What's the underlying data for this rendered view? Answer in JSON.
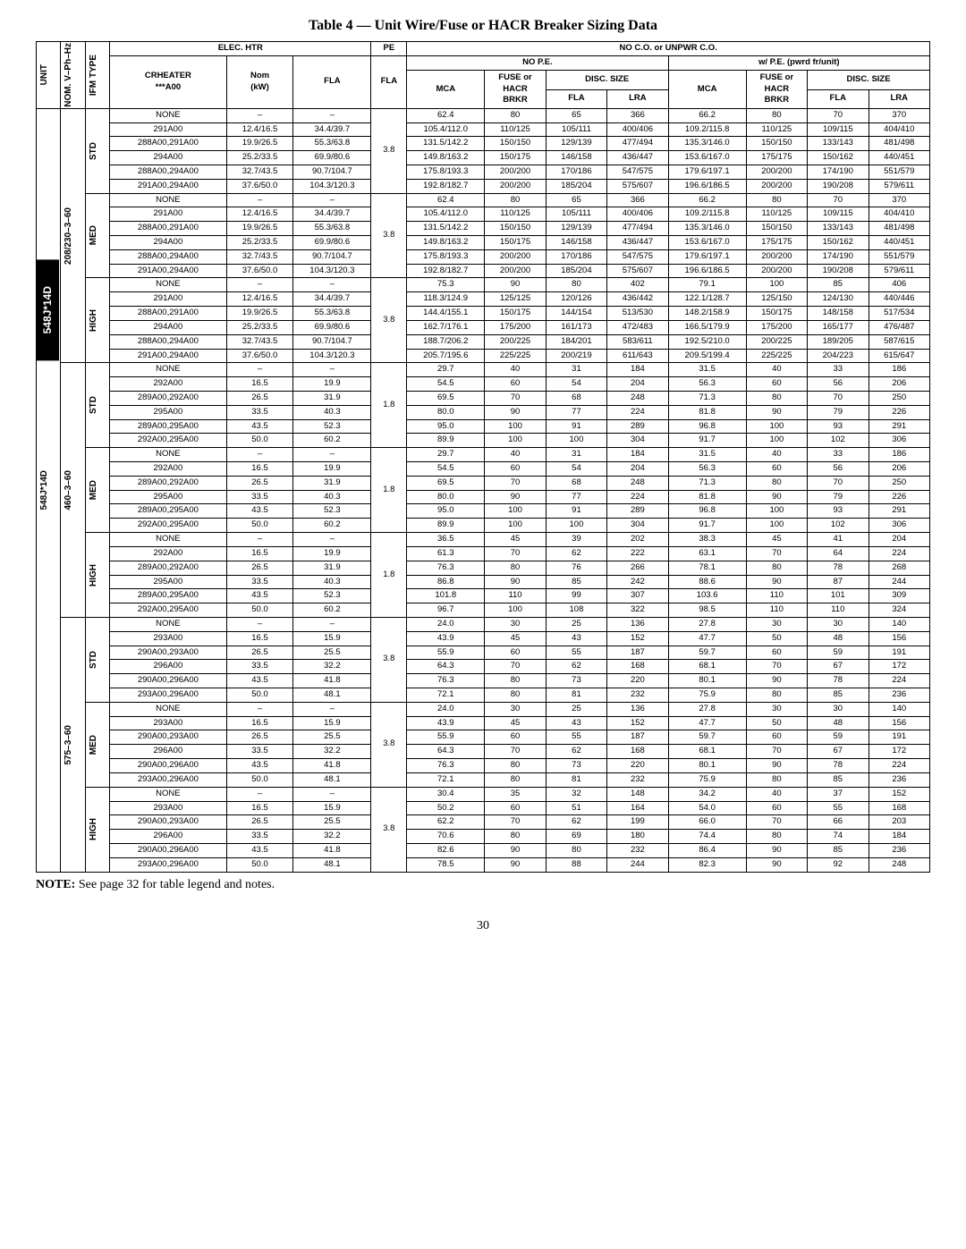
{
  "title": "Table 4 — Unit Wire/Fuse or HACR Breaker Sizing Data",
  "side_tab": "548J*14D",
  "note_label": "NOTE:",
  "note_text": "See page 32 for table legend and notes.",
  "page_number": "30",
  "headers": {
    "unit": "UNIT",
    "nom": "NOM. V–Ph–Hz",
    "ifm": "IFM TYPE",
    "elec_htr": "ELEC. HTR",
    "pe": "PE",
    "no_co": "NO C.O. or UNPWR C.O.",
    "crheater_l1": "CRHEATER",
    "crheater_l2": "***A00",
    "nom_kw_l1": "Nom",
    "nom_kw_l2": "(kW)",
    "fla": "FLA",
    "no_pe": "NO P.E.",
    "wpe": "w/ P.E. (pwrd fr/unit)",
    "mca": "MCA",
    "fuse_l1": "FUSE or",
    "fuse_l2": "HACR",
    "fuse_l3": "BRKR",
    "disc": "DISC. SIZE",
    "lra": "LRA"
  },
  "unit_label": "548J*14D",
  "voltages": [
    "208/230–3–60",
    "460–3–60",
    "575–3–60"
  ],
  "ifm_types": [
    "STD",
    "MED",
    "HIGH"
  ],
  "blocks": [
    {
      "pe_fla": "3.8",
      "rows": [
        {
          "crh": "NONE",
          "kw": "–",
          "fla": "–",
          "v": [
            "62.4",
            "80",
            "65",
            "366",
            "66.2",
            "80",
            "70",
            "370"
          ]
        },
        {
          "crh": "291A00",
          "kw": "12.4/16.5",
          "fla": "34.4/39.7",
          "v": [
            "105.4/112.0",
            "110/125",
            "105/111",
            "400/406",
            "109.2/115.8",
            "110/125",
            "109/115",
            "404/410"
          ]
        },
        {
          "crh": "288A00,291A00",
          "kw": "19.9/26.5",
          "fla": "55.3/63.8",
          "v": [
            "131.5/142.2",
            "150/150",
            "129/139",
            "477/494",
            "135.3/146.0",
            "150/150",
            "133/143",
            "481/498"
          ]
        },
        {
          "crh": "294A00",
          "kw": "25.2/33.5",
          "fla": "69.9/80.6",
          "v": [
            "149.8/163.2",
            "150/175",
            "146/158",
            "436/447",
            "153.6/167.0",
            "175/175",
            "150/162",
            "440/451"
          ]
        },
        {
          "crh": "288A00,294A00",
          "kw": "32.7/43.5",
          "fla": "90.7/104.7",
          "v": [
            "175.8/193.3",
            "200/200",
            "170/186",
            "547/575",
            "179.6/197.1",
            "200/200",
            "174/190",
            "551/579"
          ]
        },
        {
          "crh": "291A00,294A00",
          "kw": "37.6/50.0",
          "fla": "104.3/120.3",
          "v": [
            "192.8/182.7",
            "200/200",
            "185/204",
            "575/607",
            "196.6/186.5",
            "200/200",
            "190/208",
            "579/611"
          ]
        }
      ]
    },
    {
      "pe_fla": "3.8",
      "rows": [
        {
          "crh": "NONE",
          "kw": "–",
          "fla": "–",
          "v": [
            "62.4",
            "80",
            "65",
            "366",
            "66.2",
            "80",
            "70",
            "370"
          ]
        },
        {
          "crh": "291A00",
          "kw": "12.4/16.5",
          "fla": "34.4/39.7",
          "v": [
            "105.4/112.0",
            "110/125",
            "105/111",
            "400/406",
            "109.2/115.8",
            "110/125",
            "109/115",
            "404/410"
          ]
        },
        {
          "crh": "288A00,291A00",
          "kw": "19.9/26.5",
          "fla": "55.3/63.8",
          "v": [
            "131.5/142.2",
            "150/150",
            "129/139",
            "477/494",
            "135.3/146.0",
            "150/150",
            "133/143",
            "481/498"
          ]
        },
        {
          "crh": "294A00",
          "kw": "25.2/33.5",
          "fla": "69.9/80.6",
          "v": [
            "149.8/163.2",
            "150/175",
            "146/158",
            "436/447",
            "153.6/167.0",
            "175/175",
            "150/162",
            "440/451"
          ]
        },
        {
          "crh": "288A00,294A00",
          "kw": "32.7/43.5",
          "fla": "90.7/104.7",
          "v": [
            "175.8/193.3",
            "200/200",
            "170/186",
            "547/575",
            "179.6/197.1",
            "200/200",
            "174/190",
            "551/579"
          ]
        },
        {
          "crh": "291A00,294A00",
          "kw": "37.6/50.0",
          "fla": "104.3/120.3",
          "v": [
            "192.8/182.7",
            "200/200",
            "185/204",
            "575/607",
            "196.6/186.5",
            "200/200",
            "190/208",
            "579/611"
          ]
        }
      ]
    },
    {
      "pe_fla": "3.8",
      "rows": [
        {
          "crh": "NONE",
          "kw": "–",
          "fla": "–",
          "v": [
            "75.3",
            "90",
            "80",
            "402",
            "79.1",
            "100",
            "85",
            "406"
          ]
        },
        {
          "crh": "291A00",
          "kw": "12.4/16.5",
          "fla": "34.4/39.7",
          "v": [
            "118.3/124.9",
            "125/125",
            "120/126",
            "436/442",
            "122.1/128.7",
            "125/150",
            "124/130",
            "440/446"
          ]
        },
        {
          "crh": "288A00,291A00",
          "kw": "19.9/26.5",
          "fla": "55.3/63.8",
          "v": [
            "144.4/155.1",
            "150/175",
            "144/154",
            "513/530",
            "148.2/158.9",
            "150/175",
            "148/158",
            "517/534"
          ]
        },
        {
          "crh": "294A00",
          "kw": "25.2/33.5",
          "fla": "69.9/80.6",
          "v": [
            "162.7/176.1",
            "175/200",
            "161/173",
            "472/483",
            "166.5/179.9",
            "175/200",
            "165/177",
            "476/487"
          ]
        },
        {
          "crh": "288A00,294A00",
          "kw": "32.7/43.5",
          "fla": "90.7/104.7",
          "v": [
            "188.7/206.2",
            "200/225",
            "184/201",
            "583/611",
            "192.5/210.0",
            "200/225",
            "189/205",
            "587/615"
          ]
        },
        {
          "crh": "291A00,294A00",
          "kw": "37.6/50.0",
          "fla": "104.3/120.3",
          "v": [
            "205.7/195.6",
            "225/225",
            "200/219",
            "611/643",
            "209.5/199.4",
            "225/225",
            "204/223",
            "615/647"
          ]
        }
      ]
    },
    {
      "pe_fla": "1.8",
      "rows": [
        {
          "crh": "NONE",
          "kw": "–",
          "fla": "–",
          "v": [
            "29.7",
            "40",
            "31",
            "184",
            "31.5",
            "40",
            "33",
            "186"
          ]
        },
        {
          "crh": "292A00",
          "kw": "16.5",
          "fla": "19.9",
          "v": [
            "54.5",
            "60",
            "54",
            "204",
            "56.3",
            "60",
            "56",
            "206"
          ]
        },
        {
          "crh": "289A00,292A00",
          "kw": "26.5",
          "fla": "31.9",
          "v": [
            "69.5",
            "70",
            "68",
            "248",
            "71.3",
            "80",
            "70",
            "250"
          ]
        },
        {
          "crh": "295A00",
          "kw": "33.5",
          "fla": "40.3",
          "v": [
            "80.0",
            "90",
            "77",
            "224",
            "81.8",
            "90",
            "79",
            "226"
          ]
        },
        {
          "crh": "289A00,295A00",
          "kw": "43.5",
          "fla": "52.3",
          "v": [
            "95.0",
            "100",
            "91",
            "289",
            "96.8",
            "100",
            "93",
            "291"
          ]
        },
        {
          "crh": "292A00,295A00",
          "kw": "50.0",
          "fla": "60.2",
          "v": [
            "89.9",
            "100",
            "100",
            "304",
            "91.7",
            "100",
            "102",
            "306"
          ]
        }
      ]
    },
    {
      "pe_fla": "1.8",
      "rows": [
        {
          "crh": "NONE",
          "kw": "–",
          "fla": "–",
          "v": [
            "29.7",
            "40",
            "31",
            "184",
            "31.5",
            "40",
            "33",
            "186"
          ]
        },
        {
          "crh": "292A00",
          "kw": "16.5",
          "fla": "19.9",
          "v": [
            "54.5",
            "60",
            "54",
            "204",
            "56.3",
            "60",
            "56",
            "206"
          ]
        },
        {
          "crh": "289A00,292A00",
          "kw": "26.5",
          "fla": "31.9",
          "v": [
            "69.5",
            "70",
            "68",
            "248",
            "71.3",
            "80",
            "70",
            "250"
          ]
        },
        {
          "crh": "295A00",
          "kw": "33.5",
          "fla": "40.3",
          "v": [
            "80.0",
            "90",
            "77",
            "224",
            "81.8",
            "90",
            "79",
            "226"
          ]
        },
        {
          "crh": "289A00,295A00",
          "kw": "43.5",
          "fla": "52.3",
          "v": [
            "95.0",
            "100",
            "91",
            "289",
            "96.8",
            "100",
            "93",
            "291"
          ]
        },
        {
          "crh": "292A00,295A00",
          "kw": "50.0",
          "fla": "60.2",
          "v": [
            "89.9",
            "100",
            "100",
            "304",
            "91.7",
            "100",
            "102",
            "306"
          ]
        }
      ]
    },
    {
      "pe_fla": "1.8",
      "rows": [
        {
          "crh": "NONE",
          "kw": "–",
          "fla": "–",
          "v": [
            "36.5",
            "45",
            "39",
            "202",
            "38.3",
            "45",
            "41",
            "204"
          ]
        },
        {
          "crh": "292A00",
          "kw": "16.5",
          "fla": "19.9",
          "v": [
            "61.3",
            "70",
            "62",
            "222",
            "63.1",
            "70",
            "64",
            "224"
          ]
        },
        {
          "crh": "289A00,292A00",
          "kw": "26.5",
          "fla": "31.9",
          "v": [
            "76.3",
            "80",
            "76",
            "266",
            "78.1",
            "80",
            "78",
            "268"
          ]
        },
        {
          "crh": "295A00",
          "kw": "33.5",
          "fla": "40.3",
          "v": [
            "86.8",
            "90",
            "85",
            "242",
            "88.6",
            "90",
            "87",
            "244"
          ]
        },
        {
          "crh": "289A00,295A00",
          "kw": "43.5",
          "fla": "52.3",
          "v": [
            "101.8",
            "110",
            "99",
            "307",
            "103.6",
            "110",
            "101",
            "309"
          ]
        },
        {
          "crh": "292A00,295A00",
          "kw": "50.0",
          "fla": "60.2",
          "v": [
            "96.7",
            "100",
            "108",
            "322",
            "98.5",
            "110",
            "110",
            "324"
          ]
        }
      ]
    },
    {
      "pe_fla": "3.8",
      "rows": [
        {
          "crh": "NONE",
          "kw": "–",
          "fla": "–",
          "v": [
            "24.0",
            "30",
            "25",
            "136",
            "27.8",
            "30",
            "30",
            "140"
          ]
        },
        {
          "crh": "293A00",
          "kw": "16.5",
          "fla": "15.9",
          "v": [
            "43.9",
            "45",
            "43",
            "152",
            "47.7",
            "50",
            "48",
            "156"
          ]
        },
        {
          "crh": "290A00,293A00",
          "kw": "26.5",
          "fla": "25.5",
          "v": [
            "55.9",
            "60",
            "55",
            "187",
            "59.7",
            "60",
            "59",
            "191"
          ]
        },
        {
          "crh": "296A00",
          "kw": "33.5",
          "fla": "32.2",
          "v": [
            "64.3",
            "70",
            "62",
            "168",
            "68.1",
            "70",
            "67",
            "172"
          ]
        },
        {
          "crh": "290A00,296A00",
          "kw": "43.5",
          "fla": "41.8",
          "v": [
            "76.3",
            "80",
            "73",
            "220",
            "80.1",
            "90",
            "78",
            "224"
          ]
        },
        {
          "crh": "293A00,296A00",
          "kw": "50.0",
          "fla": "48.1",
          "v": [
            "72.1",
            "80",
            "81",
            "232",
            "75.9",
            "80",
            "85",
            "236"
          ]
        }
      ]
    },
    {
      "pe_fla": "3.8",
      "rows": [
        {
          "crh": "NONE",
          "kw": "–",
          "fla": "–",
          "v": [
            "24.0",
            "30",
            "25",
            "136",
            "27.8",
            "30",
            "30",
            "140"
          ]
        },
        {
          "crh": "293A00",
          "kw": "16.5",
          "fla": "15.9",
          "v": [
            "43.9",
            "45",
            "43",
            "152",
            "47.7",
            "50",
            "48",
            "156"
          ]
        },
        {
          "crh": "290A00,293A00",
          "kw": "26.5",
          "fla": "25.5",
          "v": [
            "55.9",
            "60",
            "55",
            "187",
            "59.7",
            "60",
            "59",
            "191"
          ]
        },
        {
          "crh": "296A00",
          "kw": "33.5",
          "fla": "32.2",
          "v": [
            "64.3",
            "70",
            "62",
            "168",
            "68.1",
            "70",
            "67",
            "172"
          ]
        },
        {
          "crh": "290A00,296A00",
          "kw": "43.5",
          "fla": "41.8",
          "v": [
            "76.3",
            "80",
            "73",
            "220",
            "80.1",
            "90",
            "78",
            "224"
          ]
        },
        {
          "crh": "293A00,296A00",
          "kw": "50.0",
          "fla": "48.1",
          "v": [
            "72.1",
            "80",
            "81",
            "232",
            "75.9",
            "80",
            "85",
            "236"
          ]
        }
      ]
    },
    {
      "pe_fla": "3.8",
      "rows": [
        {
          "crh": "NONE",
          "kw": "–",
          "fla": "–",
          "v": [
            "30.4",
            "35",
            "32",
            "148",
            "34.2",
            "40",
            "37",
            "152"
          ]
        },
        {
          "crh": "293A00",
          "kw": "16.5",
          "fla": "15.9",
          "v": [
            "50.2",
            "60",
            "51",
            "164",
            "54.0",
            "60",
            "55",
            "168"
          ]
        },
        {
          "crh": "290A00,293A00",
          "kw": "26.5",
          "fla": "25.5",
          "v": [
            "62.2",
            "70",
            "62",
            "199",
            "66.0",
            "70",
            "66",
            "203"
          ]
        },
        {
          "crh": "296A00",
          "kw": "33.5",
          "fla": "32.2",
          "v": [
            "70.6",
            "80",
            "69",
            "180",
            "74.4",
            "80",
            "74",
            "184"
          ]
        },
        {
          "crh": "290A00,296A00",
          "kw": "43.5",
          "fla": "41.8",
          "v": [
            "82.6",
            "90",
            "80",
            "232",
            "86.4",
            "90",
            "85",
            "236"
          ]
        },
        {
          "crh": "293A00,296A00",
          "kw": "50.0",
          "fla": "48.1",
          "v": [
            "78.5",
            "90",
            "88",
            "244",
            "82.3",
            "90",
            "92",
            "248"
          ]
        }
      ]
    }
  ]
}
